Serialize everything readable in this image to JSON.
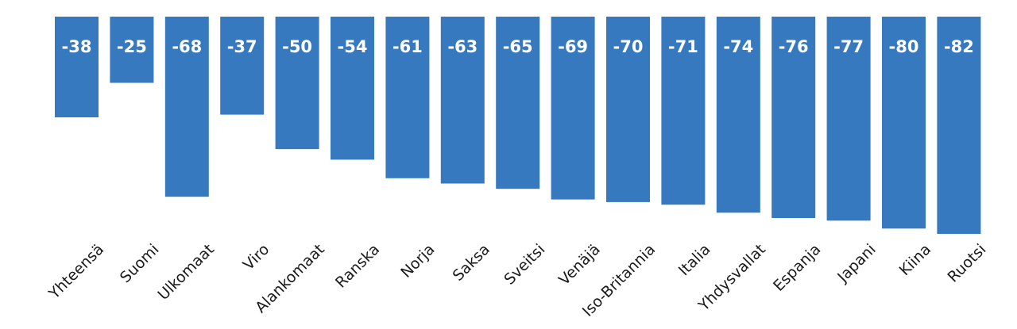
{
  "chart_data": {
    "type": "bar",
    "title": "",
    "xlabel": "",
    "ylabel": "",
    "orientation": "downward",
    "ylim": [
      -82,
      0
    ],
    "grid": false,
    "legend": "none",
    "bar_color": "#3779bf",
    "label_color": "#ffffff",
    "categories": [
      "Yhteensä",
      "Suomi",
      "Ulkomaat",
      "Viro",
      "Alankomaat",
      "Ranska",
      "Norja",
      "Saksa",
      "Sveitsi",
      "Venäjä",
      "Iso-Britannia",
      "Italia",
      "Yhdysvallat",
      "Espanja",
      "Japani",
      "Kiina",
      "Ruotsi"
    ],
    "values": [
      -38,
      -25,
      -68,
      -37,
      -50,
      -54,
      -61,
      -63,
      -65,
      -69,
      -70,
      -71,
      -74,
      -76,
      -77,
      -80,
      -82
    ],
    "data_labels": [
      "-38",
      "-25",
      "-68",
      "-37",
      "-50",
      "-54",
      "-61",
      "-63",
      "-65",
      "-69",
      "-70",
      "-71",
      "-74",
      "-76",
      "-77",
      "-80",
      "-82"
    ]
  }
}
